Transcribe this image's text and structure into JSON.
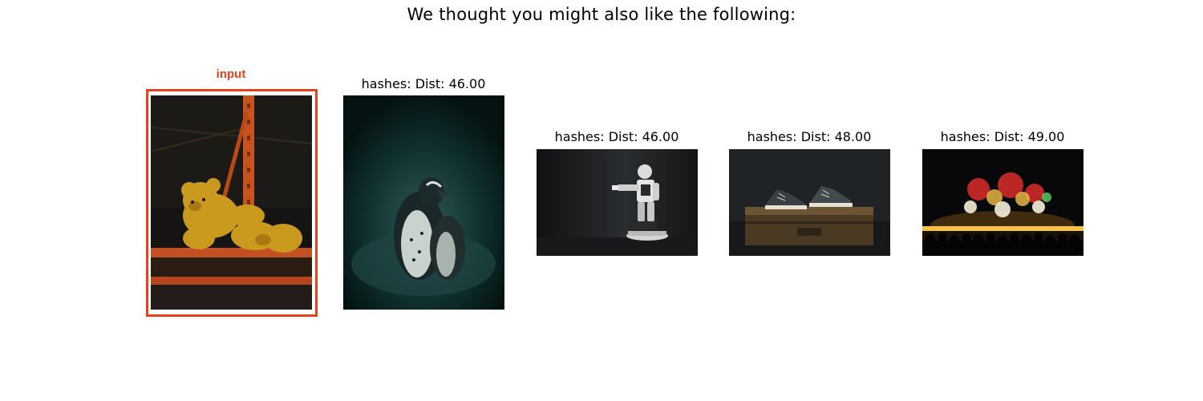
{
  "figure": {
    "suptitle": "We thought you might also like the following:"
  },
  "input_panel": {
    "label": "input",
    "image": "teddy-bear-on-orange-warehouse-shelf",
    "frame_color": "#e8421c"
  },
  "results": [
    {
      "title": "hashes: Dist: 46.00",
      "image": "penguins-dark-teal"
    },
    {
      "title": "hashes: Dist: 46.00",
      "image": "humanoid-robot-dark"
    },
    {
      "title": "hashes: Dist: 48.00",
      "image": "sneakers-on-wooden-box"
    },
    {
      "title": "hashes: Dist: 49.00",
      "image": "fireworks-night-crowd"
    }
  ]
}
